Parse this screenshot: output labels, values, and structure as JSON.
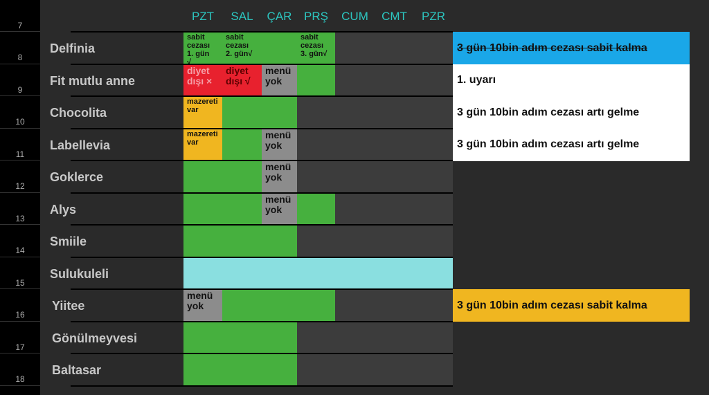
{
  "row_numbers": [
    "7",
    "8",
    "9",
    "10",
    "11",
    "12",
    "13",
    "14",
    "15",
    "16",
    "17",
    "18"
  ],
  "days": [
    "PZT",
    "SAL",
    "ÇAR",
    "PRŞ",
    "CUM",
    "CMT",
    "PZR"
  ],
  "colors": {
    "green": "#46b03e",
    "red": "#e8212e",
    "yellow": "#f0b620",
    "gray": "#8c8c8c",
    "cyan": "#8adfe0",
    "blue": "#1aa7e8",
    "orange": "#f0b620",
    "header": "#2cc6c0"
  },
  "rows": [
    {
      "name": "Delfinia",
      "cells": [
        {
          "s": "green",
          "t": "sabit\ncezası\n1. gün\n√"
        },
        {
          "s": "green",
          "t": "sabit\ncezası\n2. gün√"
        },
        {
          "s": "green",
          "t": ""
        },
        {
          "s": "green",
          "t": "sabit\ncezası\n3. gün√"
        },
        {
          "s": "empty"
        },
        {
          "s": "empty"
        },
        {
          "s": "empty"
        }
      ],
      "note": {
        "text": "3 gün 10bin adım cezası sabit kalma",
        "bg": "#1aa7e8",
        "strike": true
      }
    },
    {
      "name": "Fit mutlu anne",
      "cells": [
        {
          "s": "red",
          "t": "diyet\ndışı ×",
          "big": true,
          "fg": "#f5a0a8"
        },
        {
          "s": "red",
          "t": "diyet\ndışı √",
          "big": true,
          "fg": "#5a0000"
        },
        {
          "s": "gray",
          "t": "menü\nyok",
          "big": true
        },
        {
          "s": "green"
        },
        {
          "s": "empty"
        },
        {
          "s": "empty"
        },
        {
          "s": "empty"
        }
      ],
      "note": {
        "text": "1. uyarı",
        "bg": "#ffffff"
      }
    },
    {
      "name": "Chocolita",
      "cells": [
        {
          "s": "yellow",
          "t": "mazereti\nvar"
        },
        {
          "s": "green"
        },
        {
          "s": "green"
        },
        {
          "s": "empty"
        },
        {
          "s": "empty"
        },
        {
          "s": "empty"
        },
        {
          "s": "empty"
        }
      ],
      "note": {
        "text": "3 gün 10bin adım cezası artı gelme",
        "bg": "#ffffff"
      }
    },
    {
      "name": "Labellevia",
      "cells": [
        {
          "s": "yellow",
          "t": "mazereti\nvar"
        },
        {
          "s": "green"
        },
        {
          "s": "gray",
          "t": "menü\nyok",
          "big": true
        },
        {
          "s": "empty"
        },
        {
          "s": "empty"
        },
        {
          "s": "empty"
        },
        {
          "s": "empty"
        }
      ],
      "note": {
        "text": "3 gün 10bin adım cezası artı gelme",
        "bg": "#ffffff"
      }
    },
    {
      "name": "Goklerce",
      "cells": [
        {
          "s": "green"
        },
        {
          "s": "green"
        },
        {
          "s": "gray",
          "t": "menü\nyok",
          "big": true
        },
        {
          "s": "empty"
        },
        {
          "s": "empty"
        },
        {
          "s": "empty"
        },
        {
          "s": "empty"
        }
      ]
    },
    {
      "name": "Alys",
      "cells": [
        {
          "s": "green"
        },
        {
          "s": "green"
        },
        {
          "s": "gray",
          "t": "menü\nyok",
          "big": true
        },
        {
          "s": "green"
        },
        {
          "s": "empty"
        },
        {
          "s": "empty"
        },
        {
          "s": "empty"
        }
      ]
    },
    {
      "name": "Smiile",
      "cells": [
        {
          "s": "green"
        },
        {
          "s": "green"
        },
        {
          "s": "green"
        },
        {
          "s": "empty"
        },
        {
          "s": "empty"
        },
        {
          "s": "empty"
        },
        {
          "s": "empty"
        }
      ]
    },
    {
      "name": "Sulukuleli",
      "cells": [
        {
          "s": "cyan"
        },
        {
          "s": "cyan"
        },
        {
          "s": "cyan"
        },
        {
          "s": "cyan"
        },
        {
          "s": "cyan"
        },
        {
          "s": "cyan"
        },
        {
          "s": "cyan"
        }
      ]
    },
    {
      "name": "Yiitee",
      "cells": [
        {
          "s": "gray",
          "t": "menü\nyok",
          "big": true
        },
        {
          "s": "green"
        },
        {
          "s": "green"
        },
        {
          "s": "green"
        },
        {
          "s": "empty"
        },
        {
          "s": "empty"
        },
        {
          "s": "empty"
        }
      ],
      "note": {
        "text": "3 gün 10bin adım cezası sabit kalma",
        "bg": "#f0b620"
      }
    },
    {
      "name": "Gönülmeyvesi",
      "cells": [
        {
          "s": "green"
        },
        {
          "s": "green"
        },
        {
          "s": "green"
        },
        {
          "s": "empty"
        },
        {
          "s": "empty"
        },
        {
          "s": "empty"
        },
        {
          "s": "empty"
        }
      ]
    },
    {
      "name": "Baltasar",
      "cells": [
        {
          "s": "green"
        },
        {
          "s": "green"
        },
        {
          "s": "green"
        },
        {
          "s": "empty"
        },
        {
          "s": "empty"
        },
        {
          "s": "empty"
        },
        {
          "s": "empty"
        }
      ]
    }
  ]
}
